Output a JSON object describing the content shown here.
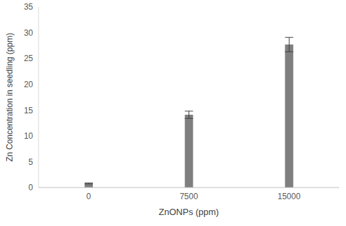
{
  "chart_data": {
    "type": "bar",
    "categories": [
      "0",
      "7500",
      "15000"
    ],
    "values": [
      0.8,
      14.1,
      27.7
    ],
    "errors": [
      0.1,
      0.7,
      1.4
    ],
    "color": "#7f7f7f",
    "x_label": "ZnONPs (ppm)",
    "y_label": "Zn Concentration in seedling (ppm)",
    "ylim": [
      0,
      35
    ],
    "yticks": [
      0,
      5,
      10,
      15,
      20,
      25,
      30,
      35
    ],
    "grid": false
  }
}
